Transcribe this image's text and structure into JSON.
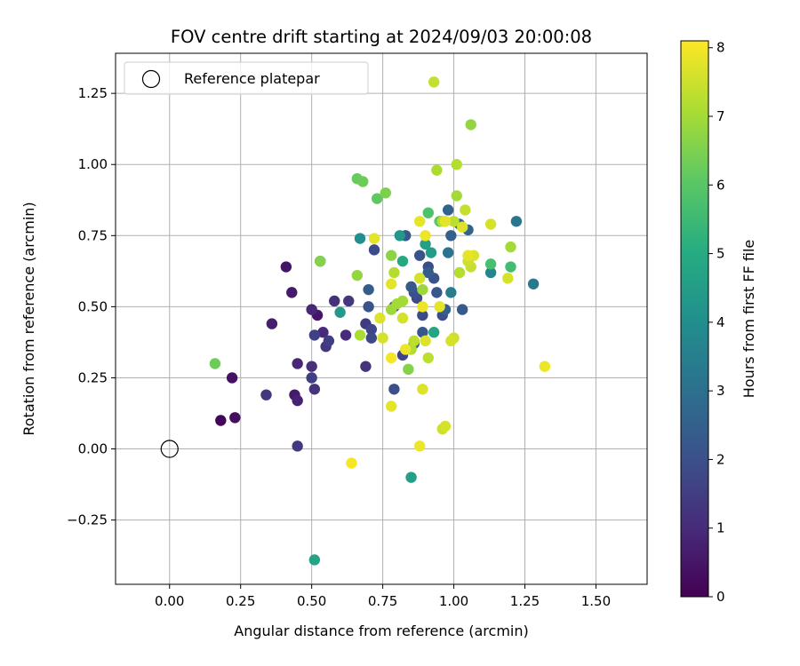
{
  "chart_data": {
    "type": "scatter",
    "title": "FOV centre drift starting at 2024/09/03 20:00:08",
    "xlabel": "Angular distance from reference (arcmin)",
    "ylabel": "Rotation from reference (arcmin)",
    "xlim": [
      -0.19,
      1.68
    ],
    "ylim": [
      -0.476,
      1.391
    ],
    "xticks": [
      0.0,
      0.25,
      0.5,
      0.75,
      1.0,
      1.25,
      1.5
    ],
    "xtick_labels": [
      "0.00",
      "0.25",
      "0.50",
      "0.75",
      "1.00",
      "1.25",
      "1.50"
    ],
    "yticks": [
      -0.25,
      0.0,
      0.25,
      0.5,
      0.75,
      1.0,
      1.25
    ],
    "ytick_labels": [
      "−0.25",
      "0.00",
      "0.25",
      "0.50",
      "0.75",
      "1.00",
      "1.25"
    ],
    "grid": true,
    "legend": {
      "placement": "top-left",
      "entries": [
        "Reference platepar"
      ]
    },
    "reference_point": {
      "x": 0.0,
      "y": 0.0,
      "marker": "open-circle"
    },
    "colorbar": {
      "label": "Hours from first FF file",
      "colormap": "viridis",
      "range": [
        0,
        8.1
      ],
      "ticks": [
        0,
        1,
        2,
        3,
        4,
        5,
        6,
        7,
        8
      ],
      "tick_labels": [
        "0",
        "1",
        "2",
        "3",
        "4",
        "5",
        "6",
        "7",
        "8"
      ]
    },
    "points": [
      [
        0.18,
        0.1,
        0.1
      ],
      [
        0.23,
        0.11,
        0.3
      ],
      [
        0.22,
        0.25,
        0.4
      ],
      [
        0.41,
        0.64,
        0.5
      ],
      [
        0.43,
        0.55,
        0.6
      ],
      [
        0.36,
        0.44,
        0.7
      ],
      [
        0.52,
        0.47,
        0.5
      ],
      [
        0.44,
        0.19,
        0.6
      ],
      [
        0.45,
        0.17,
        0.8
      ],
      [
        0.45,
        0.3,
        0.9
      ],
      [
        0.5,
        0.29,
        1.1
      ],
      [
        0.5,
        0.25,
        1.5
      ],
      [
        0.51,
        0.21,
        1.2
      ],
      [
        0.34,
        0.19,
        1.3
      ],
      [
        0.45,
        0.01,
        1.4
      ],
      [
        0.5,
        0.49,
        0.9
      ],
      [
        0.54,
        0.41,
        1.0
      ],
      [
        0.51,
        0.4,
        1.6
      ],
      [
        0.55,
        0.36,
        1.3
      ],
      [
        0.56,
        0.38,
        1.5
      ],
      [
        0.58,
        0.52,
        1.1
      ],
      [
        0.62,
        0.4,
        1.0
      ],
      [
        0.63,
        0.52,
        1.3
      ],
      [
        0.69,
        0.29,
        1.2
      ],
      [
        0.69,
        0.44,
        1.4
      ],
      [
        0.71,
        0.42,
        1.7
      ],
      [
        0.71,
        0.39,
        1.8
      ],
      [
        0.7,
        0.5,
        2.1
      ],
      [
        0.72,
        0.7,
        1.9
      ],
      [
        0.7,
        0.56,
        2.4
      ],
      [
        0.53,
        0.66,
        2.0
      ],
      [
        0.79,
        0.5,
        1.6
      ],
      [
        0.82,
        0.33,
        1.7
      ],
      [
        0.83,
        0.75,
        2.2
      ],
      [
        0.86,
        0.55,
        2.0
      ],
      [
        0.85,
        0.57,
        2.3
      ],
      [
        0.87,
        0.53,
        1.8
      ],
      [
        0.88,
        0.68,
        2.1
      ],
      [
        0.89,
        0.47,
        1.9
      ],
      [
        0.89,
        0.41,
        2.2
      ],
      [
        0.91,
        0.64,
        1.9
      ],
      [
        0.91,
        0.62,
        2.4
      ],
      [
        0.93,
        0.6,
        2.1
      ],
      [
        0.94,
        0.55,
        2.2
      ],
      [
        0.96,
        0.47,
        2.0
      ],
      [
        0.97,
        0.49,
        2.5
      ],
      [
        0.98,
        0.84,
        2.6
      ],
      [
        0.98,
        0.69,
        3.1
      ],
      [
        0.99,
        0.75,
        2.5
      ],
      [
        1.02,
        0.79,
        2.8
      ],
      [
        1.03,
        0.49,
        2.3
      ],
      [
        1.05,
        0.77,
        2.6
      ],
      [
        0.86,
        0.37,
        2.6
      ],
      [
        0.79,
        0.21,
        2.0
      ],
      [
        1.22,
        0.8,
        3.2
      ],
      [
        1.28,
        0.58,
        3.3
      ],
      [
        1.13,
        0.62,
        3.7
      ],
      [
        0.99,
        0.55,
        3.4
      ],
      [
        0.67,
        0.74,
        4.0
      ],
      [
        0.92,
        0.69,
        4.5
      ],
      [
        0.9,
        0.72,
        4.6
      ],
      [
        0.81,
        0.75,
        4.3
      ],
      [
        0.6,
        0.48,
        4.4
      ],
      [
        0.93,
        0.41,
        4.8
      ],
      [
        0.82,
        0.66,
        4.9
      ],
      [
        0.85,
        -0.1,
        4.6
      ],
      [
        0.51,
        -0.39,
        4.7
      ],
      [
        1.2,
        0.64,
        5.6
      ],
      [
        1.13,
        0.65,
        5.7
      ],
      [
        0.66,
        0.95,
        6.2
      ],
      [
        0.68,
        0.94,
        6.3
      ],
      [
        0.73,
        0.88,
        6.1
      ],
      [
        0.76,
        0.9,
        6.5
      ],
      [
        0.91,
        0.83,
        5.8
      ],
      [
        0.95,
        0.8,
        6.0
      ],
      [
        0.16,
        0.3,
        6.3
      ],
      [
        0.53,
        0.66,
        6.6
      ],
      [
        0.66,
        0.61,
        6.8
      ],
      [
        0.67,
        0.4,
        7.1
      ],
      [
        0.78,
        0.68,
        6.7
      ],
      [
        0.79,
        0.62,
        7.2
      ],
      [
        0.78,
        0.49,
        6.9
      ],
      [
        0.8,
        0.51,
        7.0
      ],
      [
        0.82,
        0.52,
        7.0
      ],
      [
        0.84,
        0.28,
        6.6
      ],
      [
        0.85,
        0.35,
        7.2
      ],
      [
        0.89,
        0.56,
        6.9
      ],
      [
        0.91,
        0.32,
        7.3
      ],
      [
        0.94,
        0.98,
        7.1
      ],
      [
        0.96,
        0.8,
        7.2
      ],
      [
        0.97,
        0.8,
        7.3
      ],
      [
        1.0,
        0.8,
        7.3
      ],
      [
        1.01,
        1.0,
        7.2
      ],
      [
        1.01,
        0.89,
        7.0
      ],
      [
        1.04,
        0.84,
        7.4
      ],
      [
        1.06,
        1.14,
        6.8
      ],
      [
        1.02,
        0.62,
        7.2
      ],
      [
        1.05,
        0.66,
        7.5
      ],
      [
        1.06,
        0.64,
        7.4
      ],
      [
        1.13,
        0.79,
        7.6
      ],
      [
        1.2,
        0.71,
        7.0
      ],
      [
        1.19,
        0.6,
        7.6
      ],
      [
        0.93,
        1.29,
        7.4
      ],
      [
        0.72,
        0.74,
        7.8
      ],
      [
        0.74,
        0.46,
        7.7
      ],
      [
        0.75,
        0.39,
        7.6
      ],
      [
        0.78,
        0.58,
        7.8
      ],
      [
        0.78,
        0.32,
        8.0
      ],
      [
        0.78,
        0.15,
        7.8
      ],
      [
        0.88,
        0.8,
        7.8
      ],
      [
        0.88,
        0.6,
        7.6
      ],
      [
        0.89,
        0.5,
        7.9
      ],
      [
        0.89,
        0.21,
        7.7
      ],
      [
        0.9,
        0.75,
        7.9
      ],
      [
        0.95,
        0.5,
        7.8
      ],
      [
        0.97,
        0.8,
        7.8
      ],
      [
        0.97,
        0.08,
        7.6
      ],
      [
        0.96,
        0.07,
        7.5
      ],
      [
        0.99,
        0.38,
        7.6
      ],
      [
        1.0,
        0.39,
        7.5
      ],
      [
        1.03,
        0.78,
        7.7
      ],
      [
        1.05,
        0.68,
        7.8
      ],
      [
        1.07,
        0.68,
        7.7
      ],
      [
        0.64,
        -0.05,
        8.0
      ],
      [
        0.88,
        0.01,
        7.9
      ],
      [
        1.32,
        0.29,
        7.9
      ],
      [
        0.82,
        0.46,
        7.6
      ],
      [
        0.86,
        0.38,
        7.3
      ],
      [
        0.83,
        0.35,
        7.9
      ],
      [
        0.9,
        0.38,
        7.7
      ]
    ]
  }
}
